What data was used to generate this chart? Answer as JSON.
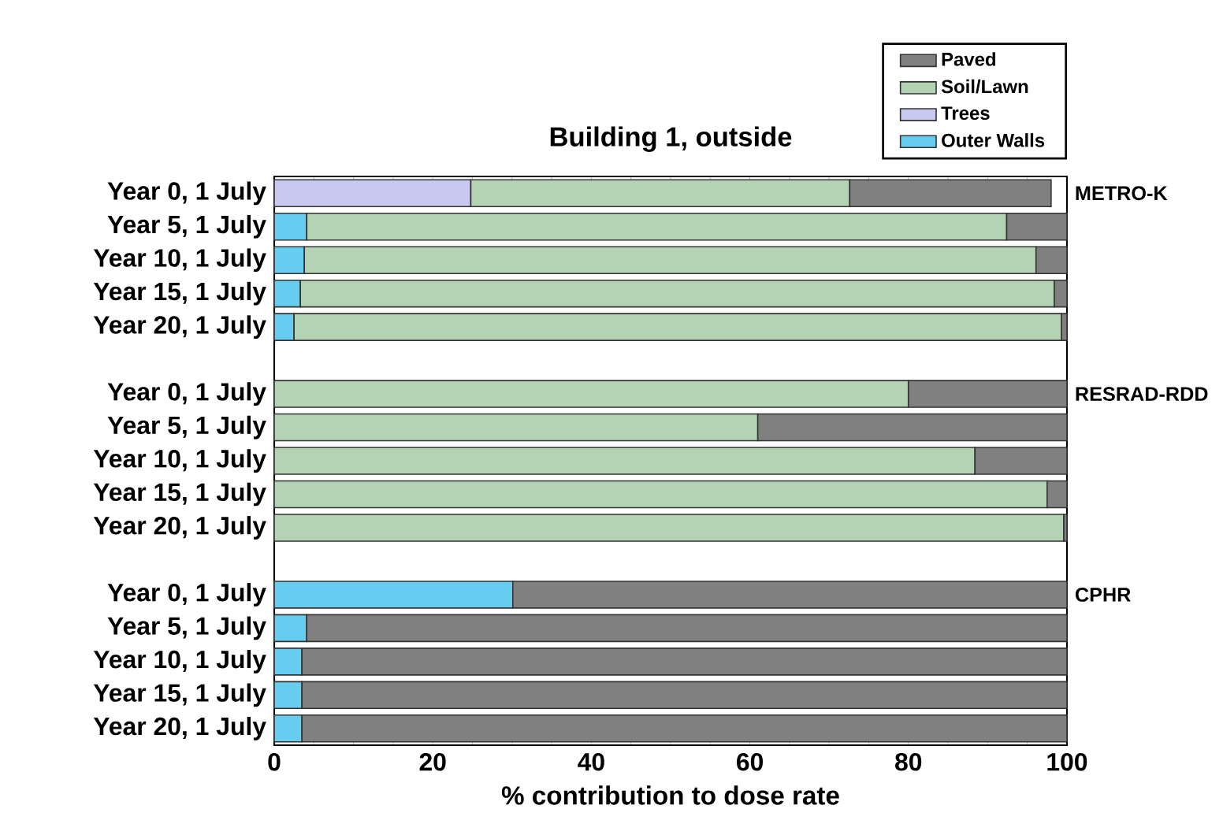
{
  "chart_data": {
    "type": "bar",
    "orientation": "horizontal",
    "stacked": true,
    "title": "Building 1, outside",
    "xlabel": "% contribution to dose rate",
    "categories": [
      "Year 0, 1 July",
      "Year 5, 1 July",
      "Year 10, 1 July",
      "Year 15, 1 July",
      "Year 20, 1 July",
      null,
      "Year 0, 1 July",
      "Year 5, 1 July",
      "Year 10, 1 July",
      "Year 15, 1 July",
      "Year 20, 1 July",
      null,
      "Year 0, 1 July",
      "Year 5, 1 July",
      "Year 10, 1 July",
      "Year 15, 1 July",
      "Year 20, 1 July"
    ],
    "series": [
      {
        "name": "Outer Walls",
        "color": "#66ccf0",
        "values": [
          null,
          4.1,
          3.8,
          3.3,
          2.5,
          null,
          null,
          null,
          null,
          null,
          null,
          null,
          30.1,
          4.1,
          3.5,
          3.5,
          3.5
        ]
      },
      {
        "name": "Trees",
        "color": "#c8c8f0",
        "values": [
          24.8,
          null,
          null,
          null,
          null,
          null,
          null,
          null,
          null,
          null,
          null,
          null,
          null,
          null,
          null,
          null,
          null
        ]
      },
      {
        "name": "Soil/Lawn",
        "color": "#b4d2b4",
        "values": [
          47.8,
          88.3,
          92.3,
          95.1,
          96.8,
          null,
          80.0,
          61.0,
          88.4,
          97.5,
          99.6,
          null,
          null,
          null,
          null,
          null,
          null
        ]
      },
      {
        "name": "Paved",
        "color": "#808080",
        "values": [
          25.4,
          7.6,
          3.9,
          1.6,
          0.7,
          null,
          20.0,
          39.0,
          11.6,
          2.5,
          0.4,
          null,
          69.9,
          95.9,
          96.5,
          96.5,
          96.5
        ]
      }
    ],
    "xlim": [
      0,
      100
    ],
    "xticks": [
      0,
      20,
      40,
      60,
      80,
      100
    ],
    "legend": "top right",
    "annotations": [
      "METRO-K",
      "RESRAD-RDD",
      "CPHR"
    ]
  }
}
